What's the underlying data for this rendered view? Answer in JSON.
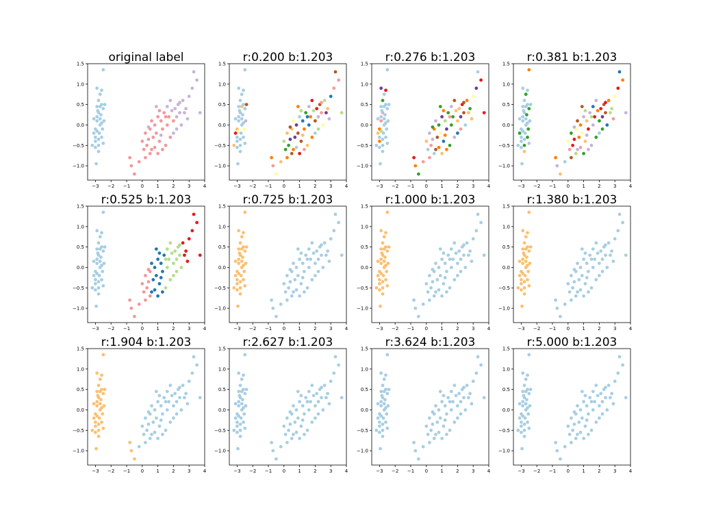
{
  "chart_data": {
    "type": "scatter",
    "layout": "3x4 grid of subplots",
    "xlim": [
      -3.5,
      4.0
    ],
    "ylim": [
      -1.35,
      1.5
    ],
    "xticks": [
      -3,
      -2,
      -1,
      0,
      1,
      2,
      3,
      4
    ],
    "yticks": [
      -1.0,
      -0.5,
      0.0,
      0.5,
      1.0,
      1.5
    ],
    "xtick_labels": [
      "−3",
      "−2",
      "−1",
      "0",
      "1",
      "2",
      "3",
      "4"
    ],
    "ytick_labels": [
      "−1.0",
      "−0.5",
      "0.0",
      "0.5",
      "1.0",
      "1.5"
    ],
    "palette": [
      "#a6cee3",
      "#1f78b4",
      "#b2df8a",
      "#33a02c",
      "#fb9a99",
      "#e31a1c",
      "#fdbf6f",
      "#ff7f00",
      "#cab2d6",
      "#6a3d9a",
      "#ffff99",
      "#b15928"
    ],
    "points": [
      [
        -3.1,
        0.15
      ],
      [
        -2.9,
        0.1
      ],
      [
        -3.0,
        -0.3
      ],
      [
        -3.2,
        -0.5
      ],
      [
        -2.8,
        0.6
      ],
      [
        -2.9,
        0.2
      ],
      [
        -2.7,
        0.45
      ],
      [
        -3.0,
        -0.1
      ],
      [
        -2.6,
        0.85
      ],
      [
        -2.9,
        0.9
      ],
      [
        -2.8,
        -0.35
      ],
      [
        -3.0,
        -0.55
      ],
      [
        -2.5,
        1.35
      ],
      [
        -2.6,
        0.5
      ],
      [
        -2.8,
        0.3
      ],
      [
        -2.9,
        -0.15
      ],
      [
        -3.0,
        -0.4
      ],
      [
        -2.7,
        0.0
      ],
      [
        -2.75,
        -0.2
      ],
      [
        -2.95,
        -0.95
      ],
      [
        -2.85,
        0.35
      ],
      [
        -2.65,
        0.25
      ],
      [
        -2.55,
        -0.1
      ],
      [
        -2.6,
        -0.3
      ],
      [
        -2.8,
        -0.5
      ],
      [
        -3.1,
        -0.2
      ],
      [
        -2.7,
        0.75
      ],
      [
        -2.5,
        0.4
      ],
      [
        -2.6,
        0.05
      ],
      [
        -2.9,
        0.45
      ],
      [
        -2.4,
        0.5
      ],
      [
        -2.5,
        -0.45
      ],
      [
        -2.8,
        -0.65
      ],
      [
        -2.7,
        0.15
      ],
      [
        -2.45,
        0.1
      ],
      [
        -0.8,
        -0.8
      ],
      [
        -0.7,
        -1.0
      ],
      [
        -0.5,
        -1.2
      ],
      [
        -0.2,
        -0.9
      ],
      [
        0.1,
        -0.6
      ],
      [
        0.0,
        -0.4
      ],
      [
        0.3,
        -0.5
      ],
      [
        0.2,
        -0.2
      ],
      [
        0.4,
        -0.35
      ],
      [
        0.5,
        -0.1
      ],
      [
        0.6,
        -0.6
      ],
      [
        0.7,
        -0.3
      ],
      [
        0.8,
        0.0
      ],
      [
        0.9,
        -0.2
      ],
      [
        1.0,
        0.2
      ],
      [
        1.1,
        -0.4
      ],
      [
        1.2,
        0.1
      ],
      [
        1.3,
        -0.1
      ],
      [
        1.4,
        0.3
      ],
      [
        1.5,
        -0.5
      ],
      [
        1.6,
        0.0
      ],
      [
        1.7,
        0.2
      ],
      [
        1.8,
        -0.3
      ],
      [
        2.0,
        0.1
      ],
      [
        2.1,
        0.4
      ],
      [
        2.2,
        0.2
      ],
      [
        2.3,
        0.5
      ],
      [
        2.4,
        0.3
      ],
      [
        2.5,
        0.0
      ],
      [
        2.6,
        0.6
      ],
      [
        2.8,
        0.4
      ],
      [
        3.0,
        0.7
      ],
      [
        3.2,
        0.9
      ],
      [
        3.3,
        1.3
      ],
      [
        3.5,
        1.1
      ],
      [
        3.7,
        0.3
      ],
      [
        0.2,
        -0.8
      ],
      [
        0.5,
        -0.7
      ],
      [
        0.8,
        -0.55
      ],
      [
        1.0,
        -0.7
      ],
      [
        1.3,
        -0.6
      ],
      [
        0.6,
        0.1
      ],
      [
        1.1,
        0.35
      ],
      [
        1.5,
        0.2
      ],
      [
        1.9,
        0.35
      ],
      [
        2.2,
        -0.1
      ],
      [
        2.7,
        0.3
      ],
      [
        2.9,
        0.15
      ],
      [
        1.2,
        -0.25
      ],
      [
        0.9,
        0.45
      ],
      [
        1.6,
        0.45
      ],
      [
        2.0,
        -0.2
      ],
      [
        0.4,
        -0.05
      ],
      [
        1.8,
        0.6
      ],
      [
        2.4,
        0.55
      ]
    ],
    "subplots": [
      {
        "title": "original label",
        "assign": [
          4,
          4,
          4,
          4,
          4,
          4,
          4,
          4,
          4,
          4,
          4,
          4,
          4,
          4,
          4,
          4,
          4,
          4,
          4,
          4,
          4,
          4,
          4,
          4,
          4,
          4,
          4,
          4,
          4,
          4,
          4,
          4,
          4,
          4,
          4,
          0,
          0,
          0,
          0,
          0,
          0,
          0,
          0,
          0,
          0,
          0,
          0,
          0,
          0,
          0,
          0,
          0,
          0,
          0,
          0,
          0,
          0,
          0,
          0,
          8,
          8,
          8,
          8,
          8,
          8,
          8,
          8,
          8,
          8,
          8,
          8,
          0,
          0,
          0,
          0,
          0,
          0,
          0,
          0,
          8,
          8,
          8,
          8,
          8,
          8,
          8,
          8,
          8,
          8,
          8
        ],
        "class_colors": [
          "#a6cee3",
          "#f4979b",
          "#c9b3d6"
        ]
      },
      {
        "title": "r:0.200 b:1.203",
        "assign": "mixed"
      },
      {
        "title": "r:0.276 b:1.203",
        "assign": "mixed"
      },
      {
        "title": "r:0.381 b:1.203",
        "assign": "mixed"
      },
      {
        "title": "r:0.525 b:1.203",
        "assign": "mixed"
      },
      {
        "title": "r:0.725 b:1.203",
        "assign": "two"
      },
      {
        "title": "r:1.000 b:1.203",
        "assign": "two"
      },
      {
        "title": "r:1.380 b:1.203",
        "assign": "two"
      },
      {
        "title": "r:1.904 b:1.203",
        "assign": "two"
      },
      {
        "title": "r:2.627 b:1.203",
        "assign": "one"
      },
      {
        "title": "r:3.624 b:1.203",
        "assign": "one"
      },
      {
        "title": "r:5.000 b:1.203",
        "assign": "one"
      }
    ]
  }
}
